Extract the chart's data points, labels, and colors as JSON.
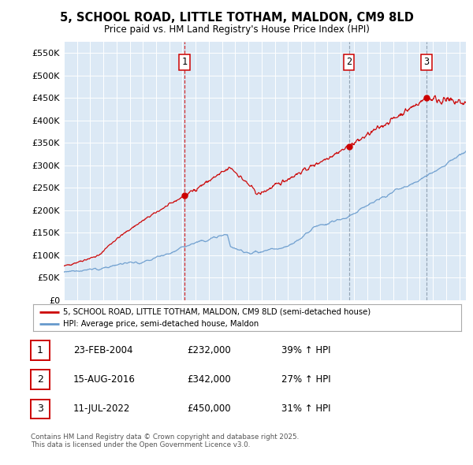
{
  "title": "5, SCHOOL ROAD, LITTLE TOTHAM, MALDON, CM9 8LD",
  "subtitle": "Price paid vs. HM Land Registry's House Price Index (HPI)",
  "plot_bg_color": "#dce9f5",
  "yticks": [
    0,
    50000,
    100000,
    150000,
    200000,
    250000,
    300000,
    350000,
    400000,
    450000,
    500000,
    550000
  ],
  "ytick_labels": [
    "£0",
    "£50K",
    "£100K",
    "£150K",
    "£200K",
    "£250K",
    "£300K",
    "£350K",
    "£400K",
    "£450K",
    "£500K",
    "£550K"
  ],
  "ylim": [
    0,
    575000
  ],
  "xlim_start": 1995.0,
  "xlim_end": 2025.5,
  "sale_dates": [
    2004.14,
    2016.62,
    2022.52
  ],
  "sale_prices": [
    232000,
    342000,
    450000
  ],
  "sale_labels": [
    "1",
    "2",
    "3"
  ],
  "sale_date_strs": [
    "23-FEB-2004",
    "15-AUG-2016",
    "11-JUL-2022"
  ],
  "sale_price_strs": [
    "£232,000",
    "£342,000",
    "£450,000"
  ],
  "sale_hpi_strs": [
    "39% ↑ HPI",
    "27% ↑ HPI",
    "31% ↑ HPI"
  ],
  "red_color": "#cc0000",
  "blue_color": "#6699cc",
  "vline_colors": [
    "#cc0000",
    "#8899aa",
    "#8899aa"
  ],
  "legend_label_red": "5, SCHOOL ROAD, LITTLE TOTHAM, MALDON, CM9 8LD (semi-detached house)",
  "legend_label_blue": "HPI: Average price, semi-detached house, Maldon",
  "footer": "Contains HM Land Registry data © Crown copyright and database right 2025.\nThis data is licensed under the Open Government Licence v3.0."
}
